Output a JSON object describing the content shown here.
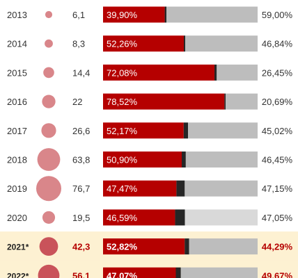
{
  "chart_data": {
    "type": "bar",
    "stacked": true,
    "categories": [
      "2013",
      "2014",
      "2015",
      "2016",
      "2017",
      "2018",
      "2019",
      "2020",
      "2021*",
      "2022*"
    ],
    "bubble_values": [
      6.1,
      8.3,
      14.4,
      22,
      26.6,
      63.8,
      76.7,
      19.5,
      42.3,
      56.1
    ],
    "bubble_labels": [
      "6,1",
      "8,3",
      "14,4",
      "22",
      "26,6",
      "63,8",
      "76,7",
      "19,5",
      "42,3",
      "56,1"
    ],
    "highlighted": [
      false,
      false,
      false,
      false,
      false,
      false,
      false,
      false,
      true,
      true
    ],
    "series": [
      {
        "values": [
          39.9,
          52.26,
          72.08,
          78.52,
          52.17,
          50.9,
          47.47,
          46.59,
          52.82,
          47.07
        ],
        "labels": [
          "39,90%",
          "52,26%",
          "72,08%",
          "78,52%",
          "52,17%",
          "50,90%",
          "47,47%",
          "46,59%",
          "52,82%",
          "47,07%"
        ]
      },
      {
        "values": [
          1.1,
          0.9,
          1.47,
          0.8,
          2.81,
          2.64,
          5.38,
          6.36,
          2.89,
          3.26
        ],
        "labels": [
          "1,10%",
          "0,90%",
          "1,47%",
          "0,80%",
          "2,81%",
          "2,64%",
          "5,38%",
          "6,36%",
          "2,89%",
          "3,26%"
        ]
      },
      {
        "values": [
          59.0,
          46.84,
          26.45,
          20.69,
          45.02,
          46.45,
          47.15,
          47.05,
          44.29,
          49.67
        ],
        "labels": [
          "59,00%",
          "46,84%",
          "26,45%",
          "20,69%",
          "45,02%",
          "46,45%",
          "47,15%",
          "47,05%",
          "44,29%",
          "49,67%"
        ]
      }
    ],
    "xlim": [
      0,
      100
    ],
    "grid": false,
    "colors": {
      "series1": "#b50000",
      "series2": "#262626",
      "series3": "#bdbdbd",
      "series3_last_regular": "#d9d9d9",
      "bubble": "#d9868a",
      "bubble_highlight": "#c9535a",
      "highlight_bg": "#fdf1d2",
      "highlight_text": "#b50000",
      "text": "#333333"
    }
  }
}
